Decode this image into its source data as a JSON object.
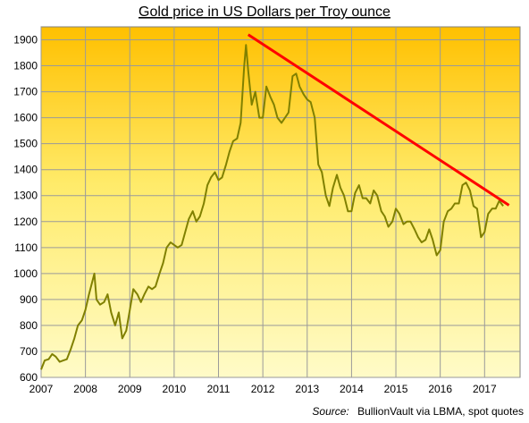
{
  "chart_data": {
    "type": "line",
    "title": "Gold price in US Dollars per Troy  ounce",
    "xlabel": "",
    "ylabel": "",
    "xlim": [
      2007.0,
      2017.8
    ],
    "ylim": [
      600,
      1950
    ],
    "x_ticks": [
      "2007",
      "2008",
      "2009",
      "2010",
      "2011",
      "2012",
      "2013",
      "2014",
      "2015",
      "2016",
      "2017"
    ],
    "y_ticks": [
      "600",
      "700",
      "800",
      "900",
      "1000",
      "1100",
      "1200",
      "1300",
      "1400",
      "1500",
      "1600",
      "1700",
      "1800",
      "1900"
    ],
    "grid": true,
    "background": "vertical gradient, orange at top to pale yellow at bottom",
    "series": [
      {
        "color": "#808000",
        "x": [
          2007.0,
          2007.08,
          2007.17,
          2007.25,
          2007.33,
          2007.42,
          2007.5,
          2007.58,
          2007.67,
          2007.75,
          2007.83,
          2007.92,
          2008.0,
          2008.08,
          2008.17,
          2008.2,
          2008.25,
          2008.33,
          2008.42,
          2008.5,
          2008.58,
          2008.67,
          2008.75,
          2008.83,
          2008.92,
          2009.0,
          2009.08,
          2009.17,
          2009.25,
          2009.33,
          2009.42,
          2009.5,
          2009.58,
          2009.67,
          2009.75,
          2009.83,
          2009.92,
          2010.0,
          2010.08,
          2010.17,
          2010.25,
          2010.33,
          2010.42,
          2010.5,
          2010.58,
          2010.67,
          2010.75,
          2010.83,
          2010.92,
          2011.0,
          2011.08,
          2011.17,
          2011.25,
          2011.33,
          2011.42,
          2011.5,
          2011.58,
          2011.62,
          2011.67,
          2011.75,
          2011.83,
          2011.92,
          2012.0,
          2012.08,
          2012.17,
          2012.25,
          2012.33,
          2012.42,
          2012.5,
          2012.58,
          2012.67,
          2012.75,
          2012.83,
          2012.92,
          2013.0,
          2013.08,
          2013.17,
          2013.25,
          2013.33,
          2013.42,
          2013.5,
          2013.58,
          2013.67,
          2013.75,
          2013.83,
          2013.92,
          2014.0,
          2014.08,
          2014.17,
          2014.25,
          2014.33,
          2014.42,
          2014.5,
          2014.58,
          2014.67,
          2014.75,
          2014.83,
          2014.92,
          2015.0,
          2015.08,
          2015.17,
          2015.25,
          2015.33,
          2015.42,
          2015.5,
          2015.58,
          2015.67,
          2015.75,
          2015.83,
          2015.92,
          2016.0,
          2016.08,
          2016.17,
          2016.25,
          2016.33,
          2016.42,
          2016.5,
          2016.58,
          2016.67,
          2016.75,
          2016.83,
          2016.92,
          2017.0,
          2017.08,
          2017.17,
          2017.25,
          2017.33,
          2017.42
        ],
        "y": [
          630,
          665,
          670,
          690,
          680,
          660,
          665,
          670,
          710,
          750,
          800,
          820,
          860,
          920,
          980,
          1000,
          900,
          880,
          890,
          920,
          850,
          800,
          850,
          750,
          780,
          860,
          940,
          920,
          890,
          920,
          950,
          940,
          950,
          1000,
          1040,
          1100,
          1120,
          1110,
          1100,
          1110,
          1160,
          1210,
          1240,
          1200,
          1220,
          1270,
          1340,
          1370,
          1390,
          1360,
          1370,
          1420,
          1470,
          1510,
          1520,
          1580,
          1800,
          1880,
          1780,
          1650,
          1700,
          1600,
          1600,
          1720,
          1680,
          1650,
          1600,
          1580,
          1600,
          1620,
          1760,
          1770,
          1720,
          1690,
          1670,
          1660,
          1600,
          1420,
          1390,
          1300,
          1260,
          1330,
          1380,
          1330,
          1300,
          1240,
          1240,
          1310,
          1340,
          1290,
          1290,
          1270,
          1320,
          1300,
          1240,
          1220,
          1180,
          1200,
          1250,
          1230,
          1190,
          1200,
          1200,
          1170,
          1140,
          1120,
          1130,
          1170,
          1130,
          1070,
          1090,
          1200,
          1240,
          1250,
          1270,
          1270,
          1340,
          1350,
          1320,
          1260,
          1250,
          1140,
          1160,
          1230,
          1250,
          1250,
          1280,
          1260
        ]
      }
    ],
    "trendline": {
      "color": "#ff0000",
      "x": [
        2011.67,
        2017.55
      ],
      "y": [
        1920,
        1263
      ]
    }
  },
  "source": {
    "label": "Source:",
    "text": "BullionVault via LBMA, spot quotes"
  },
  "colors": {
    "gradient_top": "#ffc000",
    "gradient_bottom": "#fffbc8",
    "grid": "#9a9a9a",
    "axis": "#808080"
  }
}
